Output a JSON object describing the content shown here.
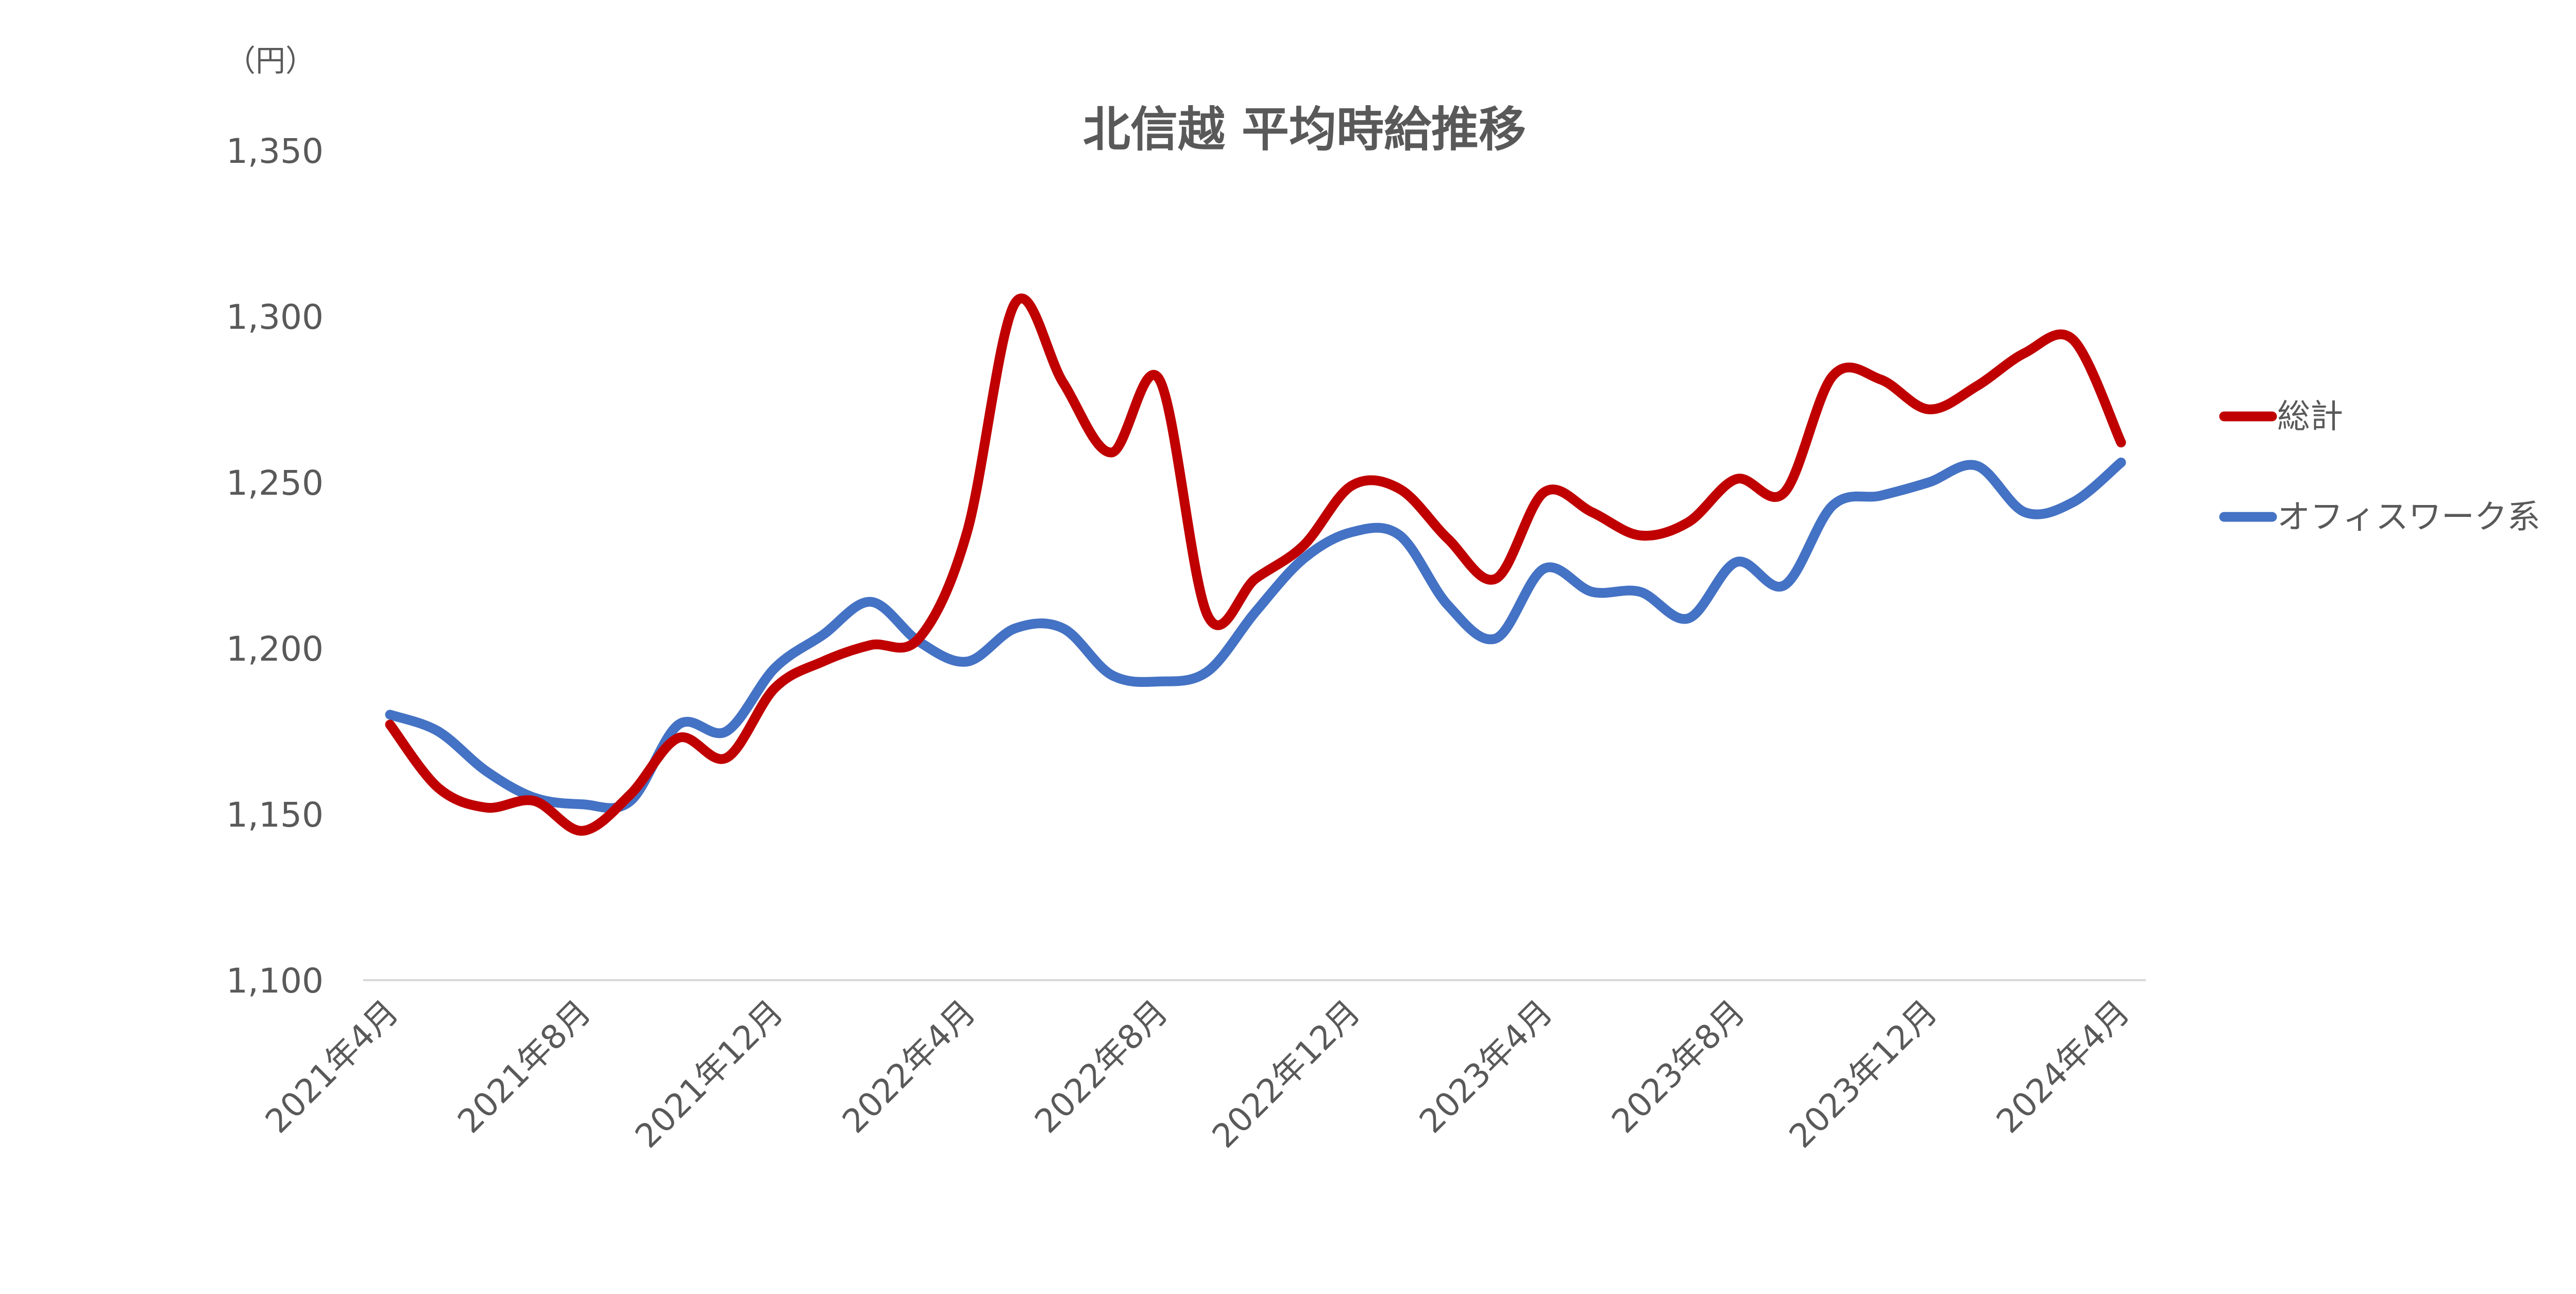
{
  "chart_data": {
    "type": "line",
    "title": "北信越 平均時給推移",
    "y_unit": "（円）",
    "xlabel": "",
    "ylabel": "",
    "ylim": [
      1100,
      1350
    ],
    "yticks": [
      1100,
      1150,
      1200,
      1250,
      1300,
      1350
    ],
    "ytick_labels": [
      "1,100",
      "1,150",
      "1,200",
      "1,250",
      "1,300",
      "1,350"
    ],
    "grid": false,
    "legend_position": "right",
    "x_tick_labels": [
      "2021年4月",
      "2021年8月",
      "2021年12月",
      "2022年4月",
      "2022年8月",
      "2022年12月",
      "2023年4月",
      "2023年8月",
      "2023年12月",
      "2024年4月"
    ],
    "x_tick_months": [
      0,
      4,
      8,
      12,
      16,
      20,
      24,
      28,
      32,
      36
    ],
    "series": [
      {
        "name": "総計",
        "color": "#C00000",
        "values": [
          1177,
          1158,
          1152,
          1154,
          1145,
          1156,
          1173,
          1167,
          1188,
          1196,
          1201,
          1203,
          1235,
          1304,
          1280,
          1259,
          1281,
          1210,
          1221,
          1231,
          1249,
          1248,
          1233,
          1221,
          1247,
          1241,
          1234,
          1238,
          1251,
          1247,
          1282,
          1281,
          1272,
          1279,
          1289,
          1293,
          1262
        ]
      },
      {
        "name": "オフィスワーク系",
        "color": "#4472C4",
        "values": [
          1180,
          1175,
          1163,
          1155,
          1153,
          1154,
          1177,
          1175,
          1194,
          1204,
          1214,
          1202,
          1196,
          1206,
          1206,
          1192,
          1190,
          1193,
          1211,
          1227,
          1235,
          1234,
          1213,
          1203,
          1224,
          1217,
          1217,
          1209,
          1226,
          1219,
          1243,
          1246,
          1250,
          1255,
          1241,
          1244,
          1256
        ]
      }
    ]
  }
}
